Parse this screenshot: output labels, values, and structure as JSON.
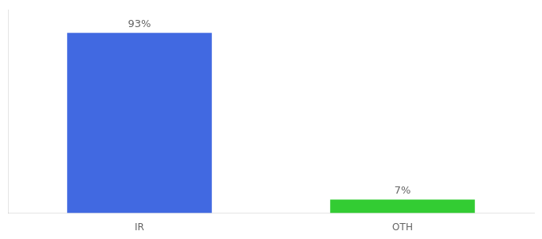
{
  "chart_data": {
    "type": "bar",
    "categories": [
      "IR",
      "OTH"
    ],
    "values": [
      93,
      7
    ],
    "value_labels": [
      "93%",
      "7%"
    ],
    "data_labels": true,
    "colors": [
      "#4169e1",
      "#33cc33"
    ],
    "ylim": [
      0,
      105
    ],
    "grid": false,
    "tick_labels": "x"
  }
}
